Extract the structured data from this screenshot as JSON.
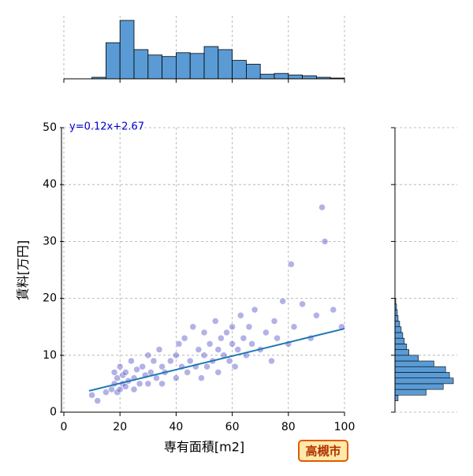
{
  "chart_data": {
    "type": "scatter",
    "xlabel": "専有面積[m2]",
    "ylabel": "賃料[万円]",
    "annotation": "y=0.12x+2.67",
    "badge": "高槻市",
    "xlim": [
      0,
      100
    ],
    "xticks": [
      0,
      20,
      40,
      60,
      80,
      100
    ],
    "ylim": [
      0,
      50
    ],
    "yticks": [
      0,
      10,
      20,
      30,
      40,
      50
    ],
    "grid": true,
    "color": "#2222bb",
    "x": [
      10,
      12,
      15,
      17,
      18,
      18,
      19,
      19,
      20,
      20,
      21,
      21,
      22,
      22,
      23,
      24,
      25,
      25,
      26,
      27,
      28,
      29,
      30,
      30,
      31,
      32,
      33,
      34,
      35,
      35,
      36,
      38,
      40,
      40,
      41,
      42,
      43,
      44,
      45,
      46,
      47,
      48,
      49,
      50,
      50,
      51,
      52,
      53,
      54,
      55,
      55,
      56,
      57,
      58,
      59,
      60,
      60,
      61,
      62,
      63,
      64,
      65,
      66,
      67,
      68,
      70,
      72,
      74,
      75,
      76,
      78,
      80,
      81,
      82,
      85,
      88,
      90,
      92,
      93,
      96,
      99
    ],
    "values": [
      3,
      2,
      3.5,
      4,
      5,
      7,
      3.5,
      6,
      4,
      8,
      5,
      6.5,
      4.5,
      7,
      5.5,
      9,
      6,
      4,
      7.5,
      5,
      8,
      6.5,
      10,
      5,
      7,
      9,
      6,
      11,
      8,
      5,
      7,
      9,
      10,
      6,
      12,
      8,
      13,
      7,
      9,
      15,
      8,
      11,
      6,
      10,
      14,
      8,
      12,
      9,
      16,
      7,
      11,
      13,
      10,
      14,
      9,
      15,
      12,
      8,
      11,
      17,
      13,
      10,
      15,
      12,
      18,
      11,
      14,
      9,
      16,
      13,
      19.5,
      12,
      26,
      15,
      19,
      13,
      17,
      36,
      30,
      18,
      15
    ],
    "regression": {
      "color": "#1f77b4",
      "x": [
        9,
        100
      ],
      "values": [
        3.75,
        14.67
      ]
    },
    "top_hist": {
      "color": "#5a9bd5",
      "bins": [
        10,
        15,
        20,
        25,
        30,
        35,
        40,
        45,
        50,
        55,
        60,
        65,
        70,
        75,
        80,
        85,
        90,
        95,
        100
      ],
      "counts": [
        2,
        47,
        76,
        38,
        31,
        29,
        34,
        33,
        42,
        38,
        24,
        19,
        6,
        7,
        5,
        4,
        2,
        1
      ],
      "ylim": [
        0,
        80
      ]
    },
    "right_hist": {
      "color": "#5a9bd5",
      "bins": [
        2,
        3,
        4,
        5,
        6,
        7,
        8,
        9,
        10,
        11,
        12,
        13,
        14,
        15,
        16,
        17,
        18,
        19,
        20
      ],
      "counts": [
        4,
        40,
        62,
        75,
        70,
        65,
        50,
        30,
        18,
        15,
        12,
        10,
        8,
        6,
        4,
        3,
        2,
        1
      ],
      "xlim": [
        0,
        80
      ]
    }
  }
}
